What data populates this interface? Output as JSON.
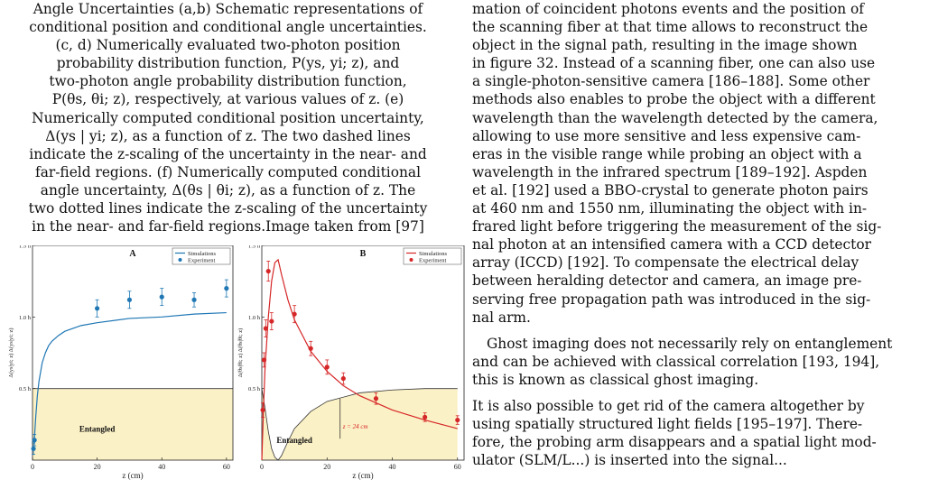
{
  "caption": {
    "lines": [
      "Angle Uncertainties (a,b) Schematic representations of",
      "conditional position and conditional angle uncertainties.",
      "(c, d) Numerically evaluated two-photon position",
      "probability distribution function, P(ys, yi; z), and",
      "two-photon angle probability distribution function,",
      "P(θs, θi; z), respectively, at various values of z. (e)",
      "Numerically computed conditional position uncertainty,",
      "Δ(ys | yi; z), as a function of z. The two dashed lines",
      "indicate the z-scaling of the uncertainty in the near- and",
      "far-field regions. (f) Numerically computed conditional",
      "angle uncertainty, Δ(θs | θi; z), as a function of z. The",
      "two dotted lines indicate the z-scaling of the uncertainty",
      "in the near- and far-field regions.Image taken from [97]"
    ]
  },
  "body_text": {
    "p1_lines": [
      "mation of coincident photons events and the position of",
      "the scanning fiber at that time allows to reconstruct the",
      "object in the signal path, resulting in the image shown",
      "in figure 32. Instead of a scanning fiber, one can also use",
      "a single-photon-sensitive camera [186–188]. Some other",
      "methods also enables to probe the object with a different",
      "wavelength than the wavelength detected by the camera,",
      "allowing to use more sensitive and less expensive cam-",
      "eras in the visible range while probing an object with a",
      "wavelength in the infrared spectrum [189–192]. Aspden",
      "et al. [192] used a BBO-crystal to generate photon pairs",
      "at 460 nm and 1550 nm, illuminating the object with in-",
      "frared light before triggering the measurement of the sig-",
      "nal photon at an intensified camera with a CCD detector",
      "array (ICCD) [192]. To compensate the electrical delay",
      "between heralding detector and camera, an image pre-",
      "serving free propagation path was introduced in the sig-",
      "nal arm."
    ],
    "p2_lines": [
      "Ghost imaging does not necessarily rely on entanglement",
      "and can be achieved with classical correlation [193, 194],",
      "this is known as classical ghost imaging."
    ],
    "p3_lines": [
      "It is also possible to get rid of the camera altogether by",
      "using spatially structured light fields [195–197]. There-",
      "fore, the probing arm disappears and a spatial light mod-",
      "ulator (SLM/L...) is inserted into the signal..."
    ]
  },
  "chart_data": [
    {
      "type": "line",
      "panel": "A",
      "xlabel": "z (cm)",
      "ylabel": "Δ(ys|yi; z) Δ(ys|yi; z)",
      "xlim": [
        0,
        62
      ],
      "ylim": [
        0,
        1.5
      ],
      "x_ticks": [
        "0",
        "20",
        "40",
        "60"
      ],
      "y_ticks": [
        "0.5 ħ",
        "1.0 ħ",
        "1.5 ħ"
      ],
      "legend": {
        "position": "top-right",
        "entries": [
          "Simulations",
          "Experiment"
        ]
      },
      "region_label": "Entangled",
      "entangled_bound": 0.5,
      "series": [
        {
          "name": "Simulations",
          "kind": "line",
          "color": "#1f77b4",
          "x": [
            0.5,
            1,
            1.5,
            2,
            3,
            4,
            5,
            6,
            8,
            10,
            15,
            20,
            30,
            40,
            50,
            60
          ],
          "y": [
            0.12,
            0.3,
            0.45,
            0.55,
            0.68,
            0.75,
            0.8,
            0.83,
            0.87,
            0.9,
            0.94,
            0.96,
            0.99,
            1.0,
            1.02,
            1.03
          ]
        },
        {
          "name": "Experiment",
          "kind": "scatter",
          "color": "#1f77b4",
          "x": [
            0.3,
            0.6,
            20,
            30,
            40,
            50,
            60
          ],
          "y": [
            0.08,
            0.14,
            1.06,
            1.12,
            1.14,
            1.12,
            1.2
          ],
          "err": [
            0.04,
            0.04,
            0.06,
            0.06,
            0.06,
            0.05,
            0.06
          ]
        }
      ]
    },
    {
      "type": "line",
      "panel": "B",
      "xlabel": "z (cm)",
      "ylabel": "Δ(θs|θi; z) Δ(θs|θi; z)",
      "xlim": [
        0,
        62
      ],
      "ylim": [
        0,
        1.5
      ],
      "x_ticks": [
        "0",
        "20",
        "40",
        "60"
      ],
      "y_ticks": [
        "0.5 ħ",
        "1.0 ħ",
        "1.5 ħ"
      ],
      "legend": {
        "position": "top-right",
        "entries": [
          "Simulations",
          "Experiment"
        ]
      },
      "region_label": "Entangled",
      "annotation": "z = 24 cm",
      "annotation_x": 24,
      "series": [
        {
          "name": "Simulations",
          "kind": "line",
          "color": "#d62728",
          "x": [
            0,
            0.5,
            1,
            2,
            3,
            4,
            5,
            6,
            8,
            10,
            15,
            20,
            25,
            30,
            40,
            50,
            60
          ],
          "y": [
            0.0,
            0.35,
            0.65,
            1.0,
            1.25,
            1.38,
            1.4,
            1.3,
            1.12,
            0.98,
            0.76,
            0.62,
            0.52,
            0.45,
            0.35,
            0.28,
            0.22
          ]
        },
        {
          "name": "Experiment",
          "kind": "scatter",
          "color": "#d62728",
          "x": [
            0.3,
            0.7,
            1.2,
            2,
            3,
            10,
            15,
            20,
            25,
            35,
            50,
            60
          ],
          "y": [
            0.35,
            0.7,
            0.92,
            1.32,
            0.97,
            1.02,
            0.78,
            0.65,
            0.57,
            0.43,
            0.3,
            0.28
          ],
          "err": [
            0.05,
            0.05,
            0.06,
            0.07,
            0.06,
            0.06,
            0.05,
            0.05,
            0.04,
            0.04,
            0.03,
            0.03
          ]
        },
        {
          "name": "",
          "kind": "boundary",
          "color": "#333333",
          "x": [
            0,
            1,
            2,
            3,
            4,
            5,
            6,
            8,
            10,
            15,
            20,
            30,
            40,
            50,
            60
          ],
          "y": [
            0.5,
            0.36,
            0.2,
            0.08,
            0.02,
            0.0,
            0.03,
            0.13,
            0.22,
            0.34,
            0.41,
            0.47,
            0.49,
            0.5,
            0.5
          ]
        }
      ]
    }
  ]
}
